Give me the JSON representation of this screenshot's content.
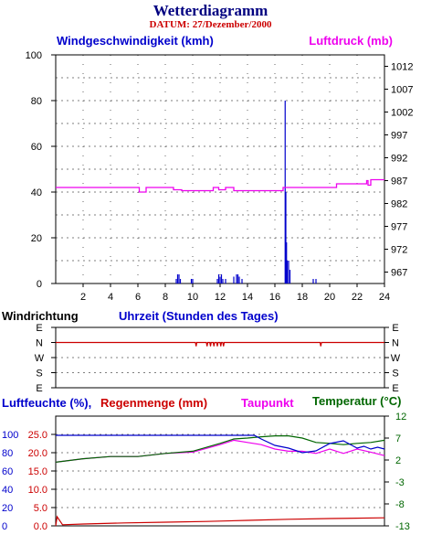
{
  "header": {
    "title": "Wetterdiagramm",
    "date_label": "DATUM: 27/Dezember/2000"
  },
  "colors": {
    "wind": "#0000cc",
    "pressure": "#ee00ee",
    "wind_direction": "#cc0000",
    "humidity": "#0000cc",
    "rain": "#cc0000",
    "dewpoint": "#ee00ee",
    "temperature": "#006600",
    "title": "#000080"
  },
  "chart_data": [
    {
      "type": "line",
      "id": "wind_pressure",
      "left_label": "Windgeschwindigkeit (kmh)",
      "right_label": "Luftdruck (mb)",
      "xlim": [
        0,
        24
      ],
      "x_ticks": [
        2,
        4,
        6,
        8,
        10,
        12,
        14,
        16,
        18,
        20,
        22,
        24
      ],
      "ylim": [
        0,
        100
      ],
      "y_ticks": [
        0,
        20,
        40,
        60,
        80,
        100
      ],
      "y2lim": [
        964.5,
        1014.5
      ],
      "y2_ticks": [
        967,
        972,
        977,
        982,
        987,
        992,
        997,
        1002,
        1007,
        1012
      ],
      "grid": true,
      "series": [
        {
          "name": "Windgeschwindigkeit (kmh)",
          "axis": "left",
          "style": "spikes",
          "x": [
            8.8,
            8.9,
            9.0,
            9.1,
            9.9,
            10.0,
            11.8,
            11.9,
            12.0,
            12.1,
            12.2,
            12.4,
            13.0,
            13.2,
            13.3,
            13.4,
            13.6,
            16.75,
            16.8,
            16.85,
            16.9,
            17.0,
            17.1,
            18.8,
            19.0
          ],
          "y": [
            2,
            4,
            4,
            2,
            2,
            2,
            2,
            4,
            3,
            4,
            2,
            2,
            3,
            4,
            4,
            3,
            2,
            80,
            40,
            18,
            10,
            10,
            6,
            2,
            2
          ]
        },
        {
          "name": "Luftdruck (mb)",
          "axis": "right",
          "style": "step",
          "x": [
            0,
            6.0,
            6.1,
            6.6,
            7.5,
            8.4,
            8.6,
            9.2,
            9.5,
            11.5,
            11.8,
            11.9,
            12.3,
            12.4,
            12.9,
            13.0,
            15.5,
            16.6,
            19.7,
            20.5,
            22.5,
            22.7,
            22.8,
            23.0,
            23.2,
            24.0
          ],
          "y": [
            985.5,
            985.5,
            984.5,
            985.5,
            985.5,
            985.5,
            985,
            984.8,
            984.8,
            985.5,
            985.5,
            985,
            985,
            985.5,
            985.5,
            984.8,
            984.8,
            985.5,
            985.5,
            986.3,
            986.3,
            987,
            986,
            987.2,
            987.2,
            987.2
          ]
        }
      ]
    },
    {
      "type": "line",
      "id": "wind_direction",
      "title": "Windrichtung",
      "xlabel": "Uhrzeit (Stunden des Tages)",
      "xlim": [
        0,
        24
      ],
      "categories": [
        "E",
        "N",
        "W",
        "S",
        "E"
      ],
      "series": [
        {
          "name": "Windrichtung",
          "x": [
            0,
            10.2,
            10.25,
            10.3,
            11.0,
            11.05,
            11.1,
            11.25,
            11.3,
            11.35,
            11.5,
            11.55,
            11.6,
            11.75,
            11.8,
            11.85,
            12.0,
            12.05,
            12.1,
            12.2,
            12.25,
            12.3,
            19.3,
            19.35,
            19.4,
            24
          ],
          "y": [
            1,
            1,
            1.25,
            1,
            1,
            1.25,
            1,
            1,
            1.25,
            1,
            1,
            1.25,
            1,
            1,
            1.25,
            1,
            1,
            1.25,
            1,
            1,
            1.25,
            1,
            1,
            1.25,
            1,
            1
          ]
        }
      ]
    },
    {
      "type": "line",
      "id": "humidity_rain_dewpoint_temp",
      "labels": {
        "humidity": "Luftfeuchte (%),",
        "rain": "Regenmenge (mm)",
        "dewpoint": "Taupunkt",
        "temperature": "Temperatur (°C)"
      },
      "xlim": [
        0,
        24
      ],
      "humidity_axis": {
        "ylim": [
          0,
          120
        ],
        "ticks": [
          0,
          20,
          40,
          60,
          80,
          100
        ]
      },
      "rain_axis": {
        "ylim": [
          0,
          30
        ],
        "ticks": [
          "0.0",
          "5.0",
          "10.0",
          "15.0",
          "20.0",
          "25.0"
        ]
      },
      "temp_axis": {
        "ylim": [
          -13,
          12
        ],
        "ticks": [
          -13,
          -8,
          -3,
          2,
          7,
          12
        ]
      },
      "series": [
        {
          "name": "Luftfeuchte (%)",
          "axis": "humidity",
          "x": [
            0,
            10,
            14.5,
            15,
            16,
            17,
            18,
            19,
            20,
            21,
            21.5,
            22,
            22.5,
            23,
            23.5,
            24
          ],
          "y": [
            99,
            99,
            99,
            95,
            88,
            85,
            80,
            82,
            90,
            93,
            89,
            85,
            87,
            84,
            86,
            84
          ]
        },
        {
          "name": "Regenmenge (mm)",
          "axis": "rain",
          "x": [
            0,
            0.1,
            0.5,
            2,
            5,
            8,
            11,
            14,
            17,
            20,
            24
          ],
          "y": [
            0,
            2.5,
            0.3,
            0.5,
            0.8,
            1,
            1.2,
            1.5,
            1.8,
            2,
            2.2
          ]
        },
        {
          "name": "Taupunkt",
          "axis": "temp",
          "x": [
            0,
            2,
            4,
            6,
            8,
            10,
            12,
            13,
            14,
            15,
            16,
            17,
            18,
            19,
            20,
            21,
            22,
            23,
            24
          ],
          "y": [
            1.5,
            2.3,
            2.8,
            2.8,
            3.5,
            3.8,
            5.5,
            6.5,
            6,
            5.5,
            4.5,
            4,
            4,
            3.5,
            4.5,
            3.5,
            4.5,
            3.8,
            3
          ]
        },
        {
          "name": "Temperatur (°C)",
          "axis": "temp",
          "x": [
            0,
            2,
            4,
            6,
            8,
            10,
            12,
            13,
            14,
            15,
            16,
            17,
            18,
            19,
            20,
            21,
            22,
            23,
            24
          ],
          "y": [
            1.5,
            2.3,
            2.8,
            2.8,
            3.5,
            4,
            5.8,
            6.8,
            7,
            7.3,
            7.5,
            7.5,
            7,
            6,
            5.8,
            5.5,
            5.8,
            6,
            6.5
          ]
        }
      ]
    }
  ]
}
